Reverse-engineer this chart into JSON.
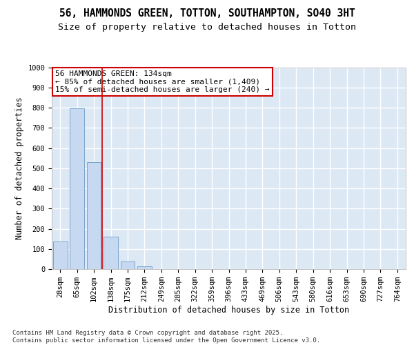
{
  "title1": "56, HAMMONDS GREEN, TOTTON, SOUTHAMPTON, SO40 3HT",
  "title2": "Size of property relative to detached houses in Totton",
  "xlabel": "Distribution of detached houses by size in Totton",
  "ylabel": "Number of detached properties",
  "categories": [
    "28sqm",
    "65sqm",
    "102sqm",
    "138sqm",
    "175sqm",
    "212sqm",
    "249sqm",
    "285sqm",
    "322sqm",
    "359sqm",
    "396sqm",
    "433sqm",
    "469sqm",
    "506sqm",
    "543sqm",
    "580sqm",
    "616sqm",
    "653sqm",
    "690sqm",
    "727sqm",
    "764sqm"
  ],
  "values": [
    136,
    795,
    530,
    162,
    38,
    12,
    0,
    0,
    0,
    0,
    0,
    0,
    0,
    0,
    0,
    0,
    0,
    0,
    0,
    0,
    0
  ],
  "bar_color": "#c6d9f0",
  "bar_edge_color": "#7aa4cc",
  "vline_x": 2.5,
  "vline_color": "#cc0000",
  "annotation_text": "56 HAMMONDS GREEN: 134sqm\n← 85% of detached houses are smaller (1,409)\n15% of semi-detached houses are larger (240) →",
  "annotation_box_color": "#ffffff",
  "annotation_box_edge_color": "#cc0000",
  "ylim": [
    0,
    1000
  ],
  "yticks": [
    0,
    100,
    200,
    300,
    400,
    500,
    600,
    700,
    800,
    900,
    1000
  ],
  "background_color": "#dde8f5",
  "grid_color": "#ffffff",
  "footer_text": "Contains HM Land Registry data © Crown copyright and database right 2025.\nContains public sector information licensed under the Open Government Licence v3.0.",
  "title1_fontsize": 10.5,
  "title2_fontsize": 9.5,
  "axis_label_fontsize": 8.5,
  "tick_fontsize": 7.5,
  "footer_fontsize": 6.5,
  "annot_fontsize": 8
}
